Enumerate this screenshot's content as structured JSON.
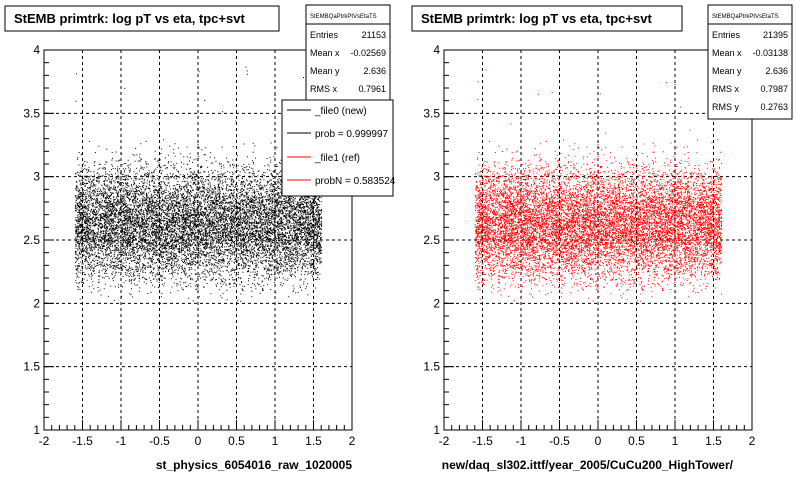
{
  "chart_data": [
    {
      "type": "scatter",
      "title": "StEMB primtrk: log pT vs eta, tpc+svt",
      "xlabel": "st_physics_6054016_raw_1020005",
      "xlim": [
        -2,
        2
      ],
      "ylim": [
        1,
        4
      ],
      "x_ticks": [
        "-2",
        "-1.5",
        "-1",
        "-0.5",
        "0",
        "0.5",
        "1",
        "1.5",
        "2"
      ],
      "y_ticks": [
        "1",
        "1.5",
        "2",
        "2.5",
        "3",
        "3.5",
        "4"
      ],
      "grid": true,
      "marker_color": "#000000",
      "distribution": {
        "x_range": [
          -1.6,
          1.6
        ],
        "y_range": [
          2.0,
          3.3
        ],
        "y_center": 2.636
      },
      "stats": {
        "name": "StEMBQaPtrkPtVsEtaTS",
        "rows": [
          {
            "label": "Entries",
            "value": "21153"
          },
          {
            "label": "Mean x",
            "value": "-0.02569"
          },
          {
            "label": "Mean y",
            "value": "2.636"
          },
          {
            "label": "RMS x",
            "value": "0.7961"
          }
        ]
      },
      "legend": {
        "placement": "top-right",
        "entries": [
          {
            "label": "_file0 (new)",
            "color": "#000000"
          },
          {
            "label": "prob = 0.999997",
            "color": "#000000"
          },
          {
            "label": "_file1 (ref)",
            "color": "#ff0000"
          },
          {
            "label": "probN = 0.583524",
            "color": "#ff0000"
          }
        ]
      }
    },
    {
      "type": "scatter",
      "title": "StEMB primtrk: log pT vs eta, tpc+svt",
      "xlabel": "new/daq_sl302.ittf/year_2005/CuCu200_HighTower/",
      "xlim": [
        -2,
        2
      ],
      "ylim": [
        1,
        4
      ],
      "x_ticks": [
        "-2",
        "-1.5",
        "-1",
        "-0.5",
        "0",
        "0.5",
        "1",
        "1.5",
        "2"
      ],
      "y_ticks": [
        "1",
        "1.5",
        "2",
        "2.5",
        "3",
        "3.5",
        "4"
      ],
      "grid": true,
      "marker_color": "#ff0000",
      "distribution": {
        "x_range": [
          -1.6,
          1.6
        ],
        "y_range": [
          2.0,
          3.3
        ],
        "y_center": 2.636
      },
      "stats": {
        "name": "StEMBQaPtrkPtVsEtaTS",
        "rows": [
          {
            "label": "Entries",
            "value": "21395"
          },
          {
            "label": "Mean x",
            "value": "-0.03138"
          },
          {
            "label": "Mean y",
            "value": "2.636"
          },
          {
            "label": "RMS x",
            "value": "0.7987"
          },
          {
            "label": "RMS y",
            "value": "0.2763"
          }
        ]
      }
    }
  ]
}
